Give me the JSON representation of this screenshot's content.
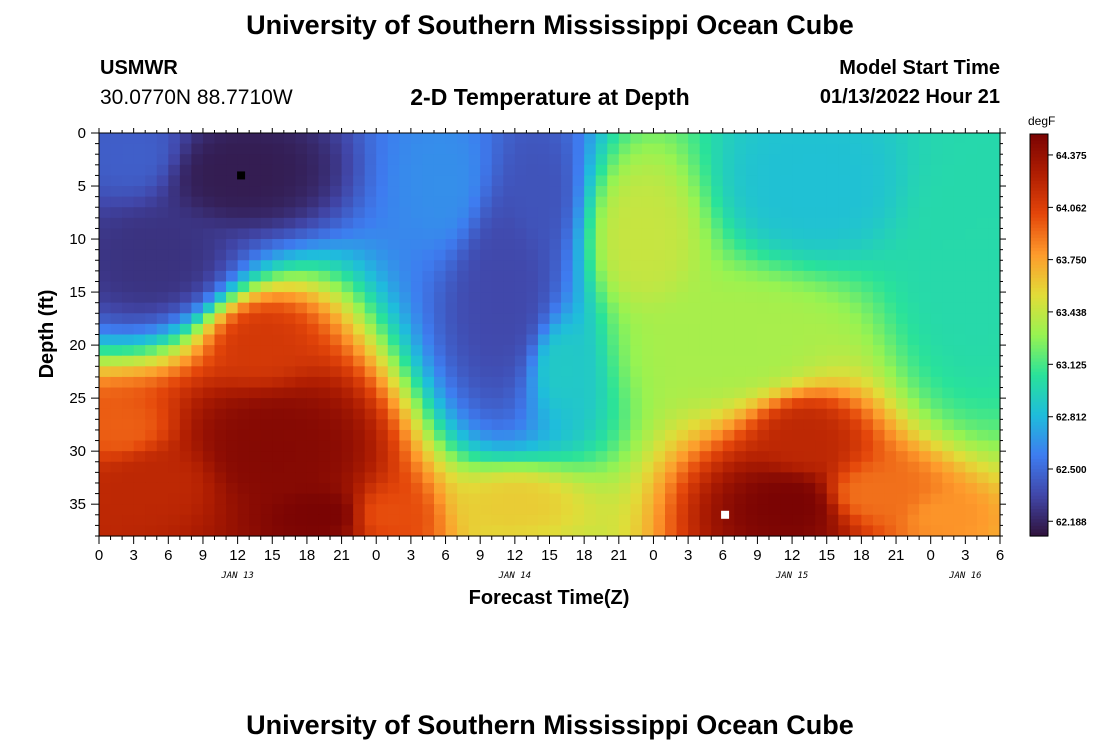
{
  "header": {
    "title": "University of Southern Mississippi Ocean Cube",
    "station": "USMWR",
    "coords": "30.0770N  88.7710W",
    "subtitle": "2-D Temperature at Depth",
    "model_label": "Model Start Time",
    "model_time": "01/13/2022 Hour 21"
  },
  "footer": {
    "title": "University of Southern Mississippi Ocean Cube"
  },
  "chart_data": {
    "type": "heatmap",
    "xlabel": "Forecast Time(Z)",
    "ylabel": "Depth (ft)",
    "xlim": [
      0,
      78
    ],
    "ylim": [
      0,
      38
    ],
    "y_inverted": true,
    "x_ticks": [
      0,
      3,
      6,
      9,
      12,
      15,
      18,
      21,
      24,
      27,
      30,
      33,
      36,
      39,
      42,
      45,
      48,
      51,
      54,
      57,
      60,
      63,
      66,
      69,
      72,
      75,
      78
    ],
    "x_tick_labels": [
      "0",
      "3",
      "6",
      "9",
      "12",
      "15",
      "18",
      "21",
      "0",
      "3",
      "6",
      "9",
      "12",
      "15",
      "18",
      "21",
      "0",
      "3",
      "6",
      "9",
      "12",
      "15",
      "18",
      "21",
      "0",
      "3",
      "6"
    ],
    "y_ticks": [
      0,
      5,
      10,
      15,
      20,
      25,
      30,
      35
    ],
    "y_tick_labels": [
      "0",
      "5",
      "10",
      "15",
      "20",
      "25",
      "30",
      "35"
    ],
    "day_labels": [
      {
        "label": "JAN 13",
        "x": 12
      },
      {
        "label": "JAN 14",
        "x": 36
      },
      {
        "label": "JAN 15",
        "x": 60
      },
      {
        "label": "JAN 16",
        "x": 75
      }
    ],
    "colorbar": {
      "unit": "degF",
      "min": 62.1,
      "max": 64.5,
      "ticks": [
        62.188,
        62.5,
        62.812,
        63.125,
        63.438,
        63.75,
        64.062,
        64.375
      ],
      "tick_labels": [
        "62.188",
        "62.500",
        "62.812",
        "63.125",
        "63.438",
        "63.750",
        "64.062",
        "64.375"
      ],
      "colormap": [
        "#30123b",
        "#4146a8",
        "#3e7cf0",
        "#1fbcdc",
        "#29e29a",
        "#98f351",
        "#e2dc38",
        "#fe9b2c",
        "#e4460a",
        "#b01e02",
        "#7a0403"
      ]
    },
    "grid": false,
    "markers": [
      {
        "name": "minimum",
        "x": 12.3,
        "y": 4,
        "color": "#000000"
      },
      {
        "name": "maximum",
        "x": 6.2,
        "y": 36,
        "color": "#ffffff",
        "x_day_offset": 48
      }
    ],
    "features": [
      {
        "x": 12,
        "y": 4,
        "value": 62.15,
        "sx": 6,
        "sy": 4
      },
      {
        "x": 5,
        "y": 12,
        "value": 62.25,
        "sx": 6,
        "sy": 5
      },
      {
        "x": 3,
        "y": 2,
        "value": 62.45,
        "sx": 4,
        "sy": 4
      },
      {
        "x": 15,
        "y": 30,
        "value": 64.45,
        "sx": 7,
        "sy": 6
      },
      {
        "x": 19,
        "y": 36,
        "value": 64.5,
        "sx": 5,
        "sy": 3
      },
      {
        "x": 5,
        "y": 33,
        "value": 64.2,
        "sx": 6,
        "sy": 4
      },
      {
        "x": 2,
        "y": 28,
        "value": 63.95,
        "sx": 4,
        "sy": 3
      },
      {
        "x": 14,
        "y": 20,
        "value": 64.1,
        "sx": 4,
        "sy": 4
      },
      {
        "x": 25,
        "y": 36,
        "value": 64.0,
        "sx": 4,
        "sy": 3
      },
      {
        "x": 35,
        "y": 15,
        "value": 62.35,
        "sx": 5,
        "sy": 11
      },
      {
        "x": 38,
        "y": 6,
        "value": 62.4,
        "sx": 3,
        "sy": 6
      },
      {
        "x": 30,
        "y": 5,
        "value": 62.65,
        "sx": 4,
        "sy": 7
      },
      {
        "x": 40,
        "y": 22,
        "value": 62.9,
        "sx": 3,
        "sy": 5
      },
      {
        "x": 47,
        "y": 10,
        "value": 63.45,
        "sx": 4,
        "sy": 6
      },
      {
        "x": 55,
        "y": 20,
        "value": 63.35,
        "sx": 8,
        "sy": 5
      },
      {
        "x": 60,
        "y": 35,
        "value": 64.5,
        "sx": 5,
        "sy": 4
      },
      {
        "x": 61,
        "y": 29,
        "value": 64.2,
        "sx": 4,
        "sy": 4
      },
      {
        "x": 67,
        "y": 34,
        "value": 63.9,
        "sx": 5,
        "sy": 3
      },
      {
        "x": 73,
        "y": 36,
        "value": 63.8,
        "sx": 3,
        "sy": 2
      },
      {
        "x": 62,
        "y": 5,
        "value": 62.85,
        "sx": 6,
        "sy": 5
      },
      {
        "x": 75,
        "y": 12,
        "value": 63.0,
        "sx": 5,
        "sy": 10
      },
      {
        "x": 36,
        "y": 35,
        "value": 63.6,
        "sx": 5,
        "sy": 3
      }
    ]
  }
}
